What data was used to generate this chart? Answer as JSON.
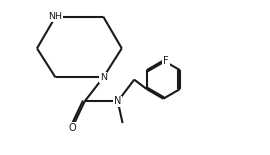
{
  "bg_color": "#ffffff",
  "line_color": "#1a1a1a",
  "line_width": 1.5,
  "figsize": [
    2.7,
    1.55
  ],
  "dpi": 100,
  "xlim": [
    0,
    10
  ],
  "ylim": [
    0,
    5.8
  ]
}
